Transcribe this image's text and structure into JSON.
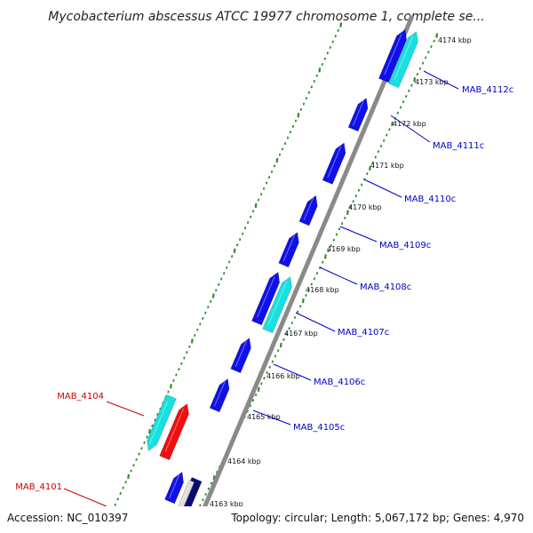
{
  "title": "Mycobacterium abscessus ATCC 19977 chromosome 1, complete se...",
  "footer": {
    "accession": "Accession: NC_010397",
    "topology": "Topology: circular; Length: 5,067,172 bp; Genes: 4,970"
  },
  "colors": {
    "backbone": "#8a8a8a",
    "tick_dots": "#2e8b2e",
    "gene_forward": "#1010e8",
    "gene_cyan": "#18e0e0",
    "gene_red": "#ee1010",
    "gene_navy": "#0a0a70",
    "label_forward": "#0000cc",
    "label_reverse": "#cc0000"
  },
  "ticks": [
    {
      "label": "4174 kbp"
    },
    {
      "label": "4173 kbp"
    },
    {
      "label": "4172 kbp"
    },
    {
      "label": "4171 kbp"
    },
    {
      "label": "4170 kbp"
    },
    {
      "label": "4169 kbp"
    },
    {
      "label": "4168 kbp"
    },
    {
      "label": "4167 kbp"
    },
    {
      "label": "4166 kbp"
    },
    {
      "label": "4165 kbp"
    },
    {
      "label": "4164 kbp"
    },
    {
      "label": "4163 kbp"
    }
  ],
  "gene_labels": [
    {
      "name": "MAB_4112c",
      "strand": "forward"
    },
    {
      "name": "MAB_4111c",
      "strand": "forward"
    },
    {
      "name": "MAB_4110c",
      "strand": "forward"
    },
    {
      "name": "MAB_4109c",
      "strand": "forward"
    },
    {
      "name": "MAB_4108c",
      "strand": "forward"
    },
    {
      "name": "MAB_4107c",
      "strand": "forward"
    },
    {
      "name": "MAB_4106c",
      "strand": "forward"
    },
    {
      "name": "MAB_4105c",
      "strand": "forward"
    },
    {
      "name": "MAB_4104",
      "strand": "reverse"
    },
    {
      "name": "MAB_4101",
      "strand": "reverse"
    }
  ]
}
